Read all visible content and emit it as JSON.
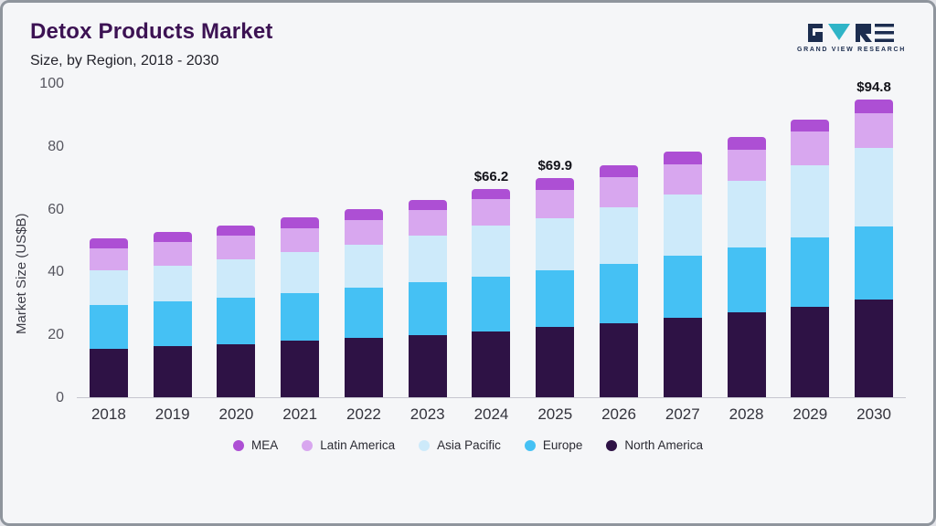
{
  "header": {
    "title": "Detox Products Market",
    "subtitle": "Size, by Region, 2018 - 2030",
    "logo_text": "GRAND VIEW RESEARCH"
  },
  "chart_data": {
    "type": "bar",
    "stacked": true,
    "title": "Detox Products Market Size, by Region, 2018 - 2030",
    "xlabel": "",
    "ylabel": "Market Size (US$B)",
    "ylim": [
      0,
      100
    ],
    "yticks": [
      0,
      20,
      40,
      60,
      80,
      100
    ],
    "grid": false,
    "legend_position": "bottom",
    "categories": [
      "2018",
      "2019",
      "2020",
      "2021",
      "2022",
      "2023",
      "2024",
      "2025",
      "2026",
      "2027",
      "2028",
      "2029",
      "2030"
    ],
    "series": [
      {
        "name": "North America",
        "color": "#2e1245",
        "values": [
          15.5,
          16.2,
          17.0,
          18.0,
          19.0,
          19.8,
          21.0,
          22.4,
          23.6,
          25.3,
          27.0,
          28.8,
          31.0
        ]
      },
      {
        "name": "Europe",
        "color": "#45c1f4",
        "values": [
          14.0,
          14.3,
          14.8,
          15.2,
          15.8,
          16.8,
          17.5,
          17.9,
          18.9,
          19.7,
          20.8,
          22.1,
          23.5
        ]
      },
      {
        "name": "Asia Pacific",
        "color": "#cdeafa",
        "values": [
          11.0,
          11.5,
          12.2,
          13.0,
          13.7,
          14.9,
          16.3,
          16.7,
          18.0,
          19.4,
          21.0,
          22.9,
          25.0
        ]
      },
      {
        "name": "Latin America",
        "color": "#d8a7ef",
        "values": [
          7.0,
          7.3,
          7.4,
          7.6,
          7.9,
          8.0,
          8.2,
          8.9,
          9.5,
          9.8,
          10.0,
          10.7,
          11.0
        ]
      },
      {
        "name": "MEA",
        "color": "#ad4fd4",
        "values": [
          3.0,
          3.2,
          3.3,
          3.4,
          3.5,
          3.4,
          3.2,
          4.0,
          3.8,
          4.0,
          4.2,
          4.0,
          4.3
        ]
      }
    ],
    "totals": [
      50.5,
      52.5,
      54.7,
      57.2,
      59.9,
      62.9,
      66.2,
      69.9,
      73.8,
      78.2,
      83.0,
      88.5,
      94.8
    ],
    "bar_labels": [
      "",
      "",
      "",
      "",
      "",
      "",
      "$66.2",
      "$69.9",
      "",
      "",
      "",
      "",
      "$94.8"
    ],
    "legend_order": [
      "MEA",
      "Latin America",
      "Asia Pacific",
      "Europe",
      "North America"
    ]
  }
}
